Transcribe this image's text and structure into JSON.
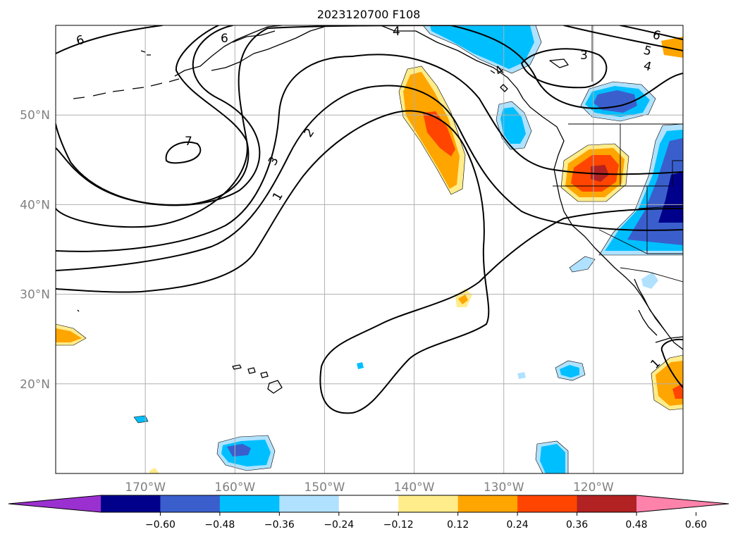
{
  "title": "2023120700 F108",
  "map": {
    "lon_range": [
      -180,
      -110
    ],
    "lat_range": [
      10,
      60
    ],
    "lat_ticks": [
      {
        "value": 20,
        "label": "20°N"
      },
      {
        "value": 30,
        "label": "30°N"
      },
      {
        "value": 40,
        "label": "40°N"
      },
      {
        "value": 50,
        "label": "50°N"
      }
    ],
    "lon_ticks": [
      {
        "value": -170,
        "label": "170°W"
      },
      {
        "value": -160,
        "label": "160°W"
      },
      {
        "value": -150,
        "label": "150°W"
      },
      {
        "value": -140,
        "label": "140°W"
      },
      {
        "value": -130,
        "label": "130°W"
      },
      {
        "value": -120,
        "label": "120°W"
      }
    ],
    "grid": true,
    "contour_labels": [
      "1",
      "2",
      "3",
      "4",
      "5",
      "6",
      "6",
      "6",
      "7",
      "3",
      "4",
      "4",
      "1"
    ]
  },
  "colorbar": {
    "ticks": [
      "−0.60",
      "−0.48",
      "−0.36",
      "−0.24",
      "−0.12",
      "0.12",
      "0.24",
      "0.36",
      "0.48",
      "0.60"
    ],
    "colors": [
      "#9b30d0",
      "#00008b",
      "#3a5fcd",
      "#00bfff",
      "#b0e2ff",
      "#ffffff",
      "#ffec8b",
      "#ffa500",
      "#ff4500",
      "#b22222",
      "#ff82ab"
    ],
    "extend": "both"
  }
}
